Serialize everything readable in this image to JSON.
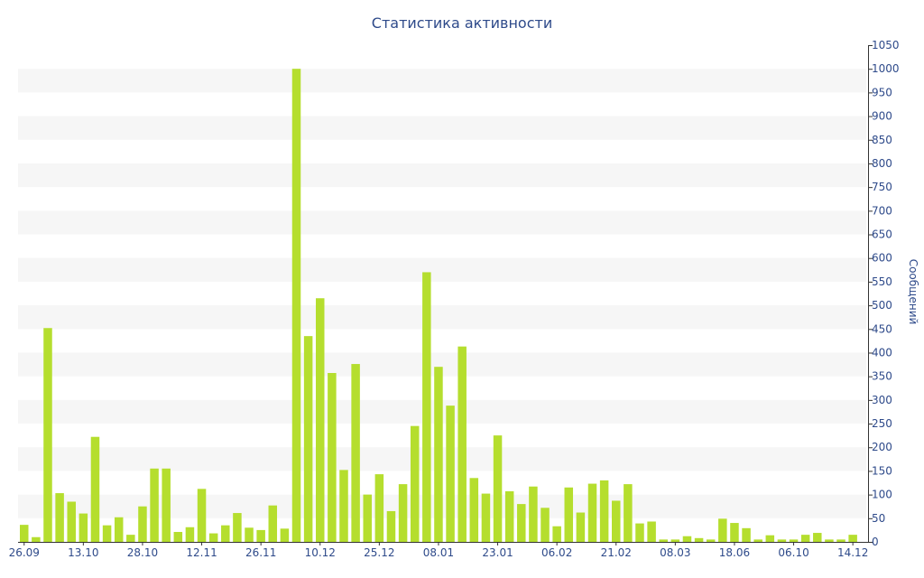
{
  "chart_data": {
    "type": "bar",
    "title": "Статистика активности",
    "xlabel": "",
    "ylabel": "Сообщений",
    "ylim": [
      0,
      1050
    ],
    "y_ticks": [
      0,
      50,
      100,
      150,
      200,
      250,
      300,
      350,
      400,
      450,
      500,
      550,
      600,
      650,
      700,
      750,
      800,
      850,
      900,
      950,
      1000,
      1050
    ],
    "y_axis_position": "right",
    "x_tick_labels": [
      "26.09",
      "13.10",
      "28.10",
      "12.11",
      "26.11",
      "10.12",
      "25.12",
      "08.01",
      "23.01",
      "06.02",
      "21.02",
      "08.03",
      "18.06",
      "06.10",
      "14.12"
    ],
    "grid": "alternating horizontal bands",
    "values": [
      36,
      10,
      452,
      103,
      85,
      60,
      222,
      35,
      52,
      15,
      75,
      155,
      155,
      21,
      31,
      112,
      18,
      35,
      61,
      30,
      25,
      77,
      28,
      1000,
      435,
      515,
      357,
      152,
      376,
      100,
      143,
      65,
      122,
      245,
      570,
      370,
      288,
      413,
      135,
      102,
      225,
      107,
      80,
      117,
      72,
      33,
      115,
      62,
      123,
      130,
      87,
      122,
      39,
      43,
      5,
      5,
      12,
      8,
      5,
      49,
      40,
      29,
      5,
      14,
      5,
      5,
      15,
      19,
      5,
      5,
      15
    ],
    "colors": {
      "bar": "#b5de2e",
      "band": "#f6f6f6",
      "text": "#2e4a8a",
      "axis": "#333333"
    }
  }
}
